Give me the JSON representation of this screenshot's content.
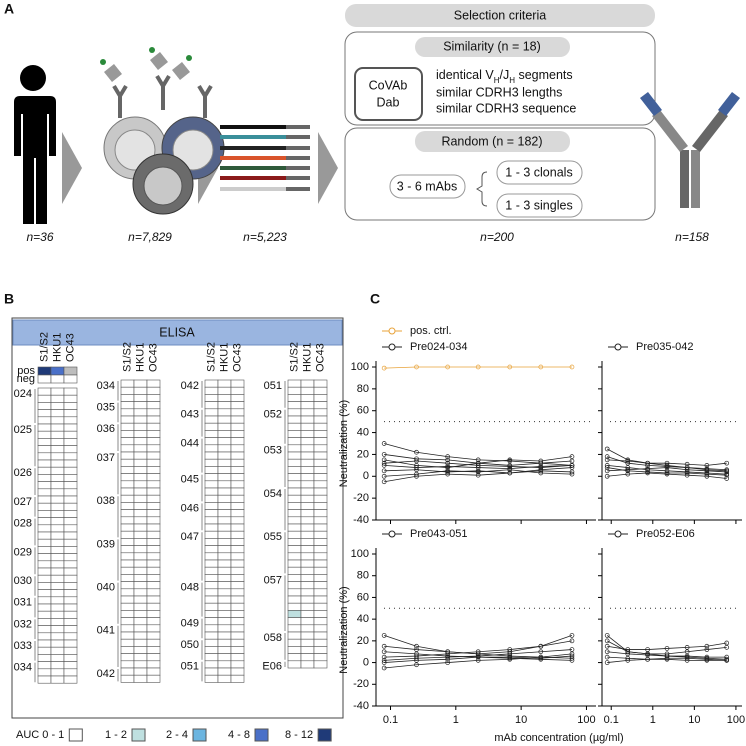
{
  "panel_a": {
    "label": "A",
    "selection_title": "Selection criteria",
    "similarity_title": "Similarity (n = 18)",
    "covab": [
      "CoVAb",
      "Dab"
    ],
    "criterion_vh": [
      "identical V",
      "H",
      "/J",
      "H",
      " segments"
    ],
    "criteria": [
      "similar CDRH3 lengths",
      "similar CDRH3 sequence"
    ],
    "random_title": "Random (n = 182)",
    "mabs": "3 - 6 mAbs",
    "clonals": "1 - 3 clonals",
    "singles": "1 - 3 singles",
    "counts": [
      "n=36",
      "n=7,829",
      "n=5,223",
      "n=200",
      "n=158"
    ]
  },
  "panel_b": {
    "label": "B",
    "title": "ELISA",
    "antigens": [
      "S1/S2",
      "HKU1",
      "OC43"
    ],
    "controls": [
      "pos",
      "neg"
    ],
    "pos_colors": [
      "#1f3a78",
      "#4a70c8",
      "#bdbdbd"
    ],
    "groups": [
      [
        {
          "label": "024",
          "rows": 5
        },
        {
          "label": "025",
          "rows": 6
        },
        {
          "label": "026",
          "rows": 4
        },
        {
          "label": "027",
          "rows": 3
        },
        {
          "label": "028",
          "rows": 4
        },
        {
          "label": "029",
          "rows": 4
        },
        {
          "label": "030",
          "rows": 3
        },
        {
          "label": "031",
          "rows": 3
        },
        {
          "label": "032",
          "rows": 3
        },
        {
          "label": "033",
          "rows": 3
        },
        {
          "label": "034",
          "rows": 3
        }
      ],
      [
        {
          "label": "034",
          "rows": 3
        },
        {
          "label": "035",
          "rows": 3
        },
        {
          "label": "036",
          "rows": 4
        },
        {
          "label": "037",
          "rows": 6
        },
        {
          "label": "038",
          "rows": 6
        },
        {
          "label": "039",
          "rows": 6
        },
        {
          "label": "040",
          "rows": 6
        },
        {
          "label": "041",
          "rows": 6
        },
        {
          "label": "042",
          "rows": 2
        }
      ],
      [
        {
          "label": "042",
          "rows": 4
        },
        {
          "label": "043",
          "rows": 4
        },
        {
          "label": "044",
          "rows": 5
        },
        {
          "label": "045",
          "rows": 4
        },
        {
          "label": "046",
          "rows": 4
        },
        {
          "label": "047",
          "rows": 7
        },
        {
          "label": "048",
          "rows": 5
        },
        {
          "label": "049",
          "rows": 3
        },
        {
          "label": "050",
          "rows": 3
        },
        {
          "label": "051",
          "rows": 3
        }
      ],
      [
        {
          "label": "051",
          "rows": 4
        },
        {
          "label": "052",
          "rows": 5
        },
        {
          "label": "053",
          "rows": 6
        },
        {
          "label": "054",
          "rows": 6
        },
        {
          "label": "055",
          "rows": 6
        },
        {
          "label": "057",
          "rows": 8,
          "positive": {
            "row": 5,
            "antigen": 0,
            "level": 1
          }
        },
        {
          "label": "058",
          "rows": 4
        },
        {
          "label": "E06",
          "rows": 1
        }
      ]
    ],
    "legend": [
      {
        "label": "AUC 0 - 1",
        "color": "#ffffff"
      },
      {
        "label": "1 - 2",
        "color": "#bfe0e0"
      },
      {
        "label": "2 - 4",
        "color": "#6cb5e0"
      },
      {
        "label": "4 - 8",
        "color": "#4a70c8"
      },
      {
        "label": "8 - 12",
        "color": "#1f3a78"
      }
    ]
  },
  "panel_c_label": "C",
  "chart_data": [
    {
      "type": "line",
      "ylabel": "Neutralization (%)",
      "legend": "Pre024-034",
      "log_x": true,
      "x": [
        0.08,
        0.25,
        0.75,
        2.2,
        6.7,
        20,
        60
      ],
      "xlim": [
        0.06,
        140
      ],
      "xticks": [
        0.1,
        1,
        10,
        100
      ],
      "ylim": [
        -40,
        100
      ],
      "yticks": [
        -40,
        -20,
        0,
        20,
        40,
        60,
        80,
        100
      ],
      "threshold": 50,
      "pos_ctrl": {
        "name": "pos. ctrl.",
        "color": "#e8a33a",
        "values": [
          99,
          100,
          100,
          100,
          100,
          100,
          100
        ]
      },
      "series": [
        [
          12,
          14,
          12,
          10,
          9,
          8,
          10
        ],
        [
          20,
          16,
          15,
          12,
          10,
          12,
          14
        ],
        [
          5,
          6,
          4,
          5,
          3,
          6,
          8
        ],
        [
          30,
          22,
          18,
          15,
          14,
          12,
          10
        ],
        [
          0,
          2,
          5,
          4,
          6,
          3,
          2
        ],
        [
          15,
          10,
          8,
          12,
          15,
          14,
          18
        ],
        [
          -5,
          0,
          2,
          1,
          3,
          5,
          4
        ],
        [
          10,
          8,
          9,
          8,
          7,
          9,
          10
        ]
      ]
    },
    {
      "type": "line",
      "legend": "Pre035-042",
      "log_x": true,
      "x": [
        0.08,
        0.25,
        0.75,
        2.2,
        6.7,
        20,
        60
      ],
      "xlim": [
        0.06,
        140
      ],
      "xticks": [
        0.1,
        1,
        10,
        100
      ],
      "ylim": [
        -40,
        100
      ],
      "yticks": [
        -40,
        -20,
        0,
        20,
        40,
        60,
        80,
        100
      ],
      "threshold": 50,
      "series": [
        [
          25,
          15,
          12,
          10,
          8,
          6,
          5
        ],
        [
          10,
          8,
          6,
          5,
          4,
          3,
          2
        ],
        [
          5,
          6,
          7,
          8,
          6,
          5,
          4
        ],
        [
          15,
          14,
          12,
          12,
          11,
          10,
          12
        ],
        [
          0,
          2,
          3,
          2,
          1,
          0,
          -2
        ],
        [
          18,
          12,
          10,
          9,
          8,
          7,
          6
        ],
        [
          8,
          5,
          4,
          3,
          3,
          2,
          1
        ]
      ]
    },
    {
      "type": "line",
      "ylabel": "Neutralization (%)",
      "xlabel": "mAb concentration (µg/ml)",
      "legend": "Pre043-051",
      "log_x": true,
      "x": [
        0.08,
        0.25,
        0.75,
        2.2,
        6.7,
        20,
        60
      ],
      "xlim": [
        0.06,
        140
      ],
      "xticks": [
        0.1,
        1,
        10,
        100
      ],
      "ylim": [
        -40,
        100
      ],
      "yticks": [
        -40,
        -20,
        0,
        20,
        40,
        60,
        80,
        100
      ],
      "threshold": 50,
      "series": [
        [
          25,
          15,
          10,
          8,
          10,
          15,
          25
        ],
        [
          5,
          6,
          8,
          10,
          12,
          15,
          20
        ],
        [
          0,
          2,
          3,
          5,
          4,
          3,
          2
        ],
        [
          10,
          8,
          6,
          5,
          5,
          4,
          6
        ],
        [
          -5,
          -2,
          0,
          2,
          3,
          5,
          8
        ],
        [
          15,
          12,
          10,
          8,
          6,
          5,
          4
        ],
        [
          2,
          4,
          5,
          6,
          8,
          10,
          12
        ]
      ]
    },
    {
      "type": "line",
      "legend": "Pre052-E06",
      "log_x": true,
      "x": [
        0.08,
        0.25,
        0.75,
        2.2,
        6.7,
        20,
        60
      ],
      "xlim": [
        0.06,
        140
      ],
      "xticks": [
        0.1,
        1,
        10,
        100
      ],
      "ylim": [
        -40,
        100
      ],
      "yticks": [
        -40,
        -20,
        0,
        20,
        40,
        60,
        80,
        100
      ],
      "threshold": 50,
      "series": [
        [
          25,
          10,
          8,
          6,
          5,
          4,
          3
        ],
        [
          10,
          8,
          7,
          6,
          6,
          5,
          5
        ],
        [
          15,
          12,
          12,
          13,
          14,
          15,
          18
        ],
        [
          5,
          4,
          3,
          3,
          2,
          2,
          2
        ],
        [
          0,
          2,
          3,
          4,
          4,
          3,
          2
        ],
        [
          20,
          10,
          8,
          8,
          10,
          12,
          14
        ]
      ]
    }
  ]
}
